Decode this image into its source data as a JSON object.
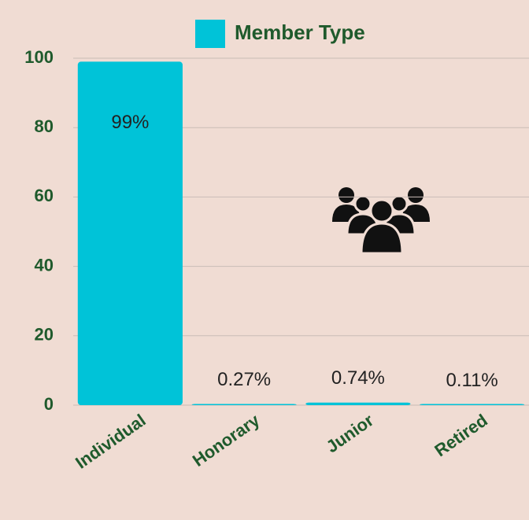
{
  "chart_data": {
    "type": "bar",
    "legend": "Member Type",
    "categories": [
      "Individual",
      "Honorary",
      "Junior",
      "Retired"
    ],
    "values": [
      99,
      0.27,
      0.74,
      0.11
    ],
    "value_labels": [
      "99%",
      "0.27%",
      "0.74%",
      "0.11%"
    ],
    "color": "#00c3d8",
    "ylim": [
      0,
      100
    ],
    "yticks": [
      0,
      20,
      40,
      60,
      80,
      100
    ],
    "grid": true
  }
}
